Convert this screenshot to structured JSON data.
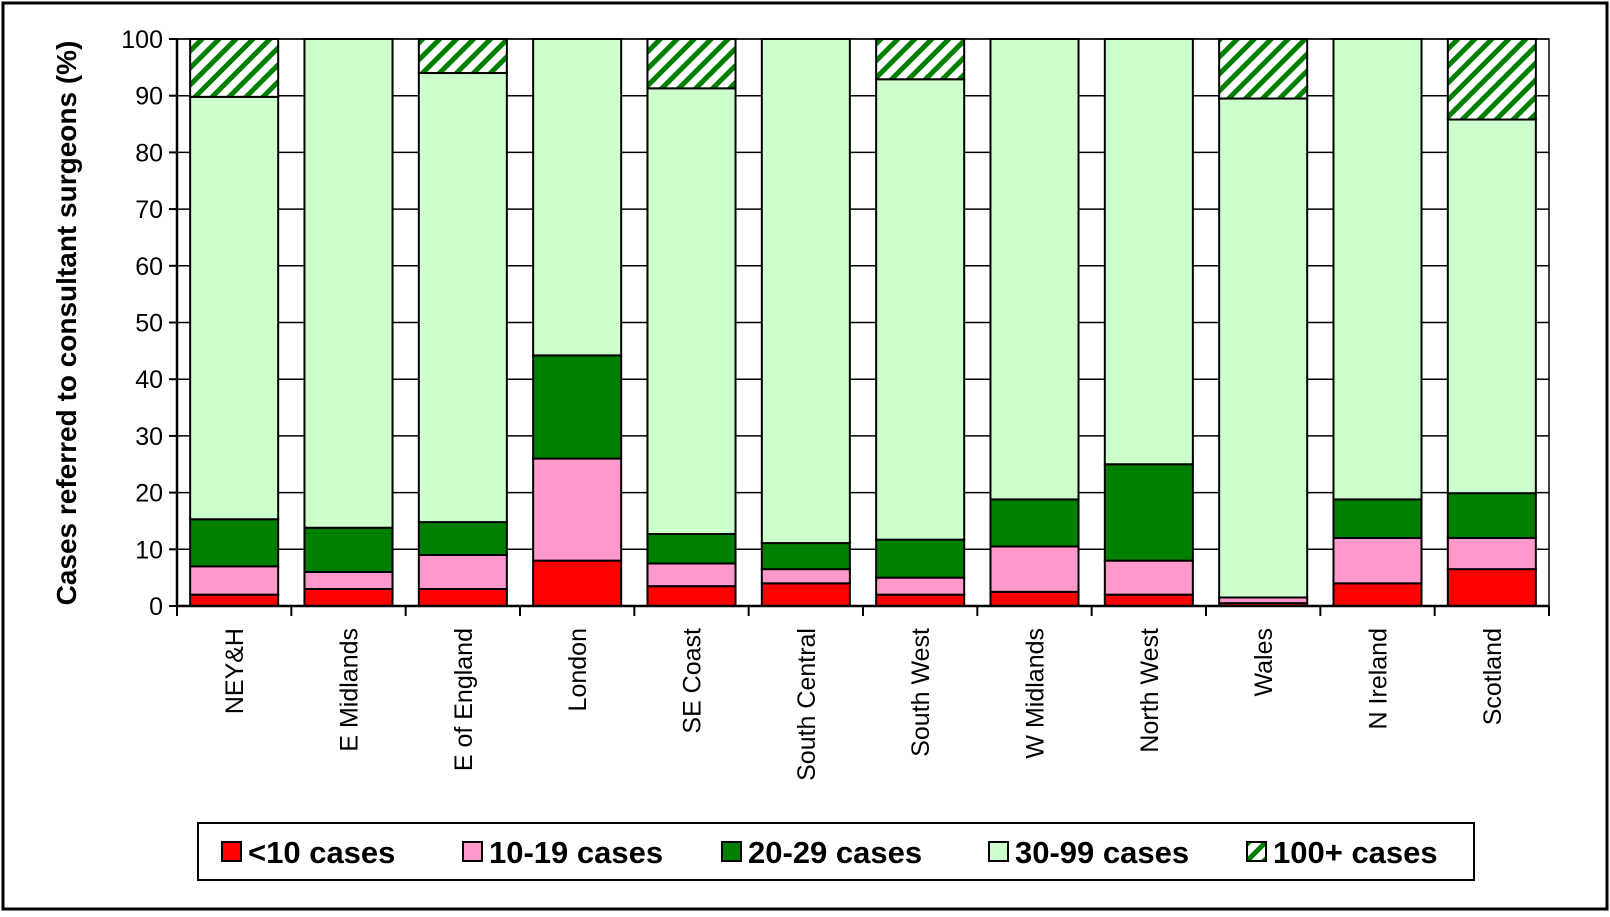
{
  "chart_data": {
    "type": "bar",
    "stacked": true,
    "title": "",
    "xlabel": "",
    "ylabel": "Cases referred to consultant surgeons (%)",
    "ylim": [
      0,
      100
    ],
    "yticks": [
      0,
      10,
      20,
      30,
      40,
      50,
      60,
      70,
      80,
      90,
      100
    ],
    "grid": true,
    "legend_position": "bottom",
    "categories": [
      "NEY&H",
      "E Midlands",
      "E of England",
      "London",
      "SE Coast",
      "South Central",
      "South West",
      "W Midlands",
      "North West",
      "Wales",
      "N Ireland",
      "Scotland"
    ],
    "series": [
      {
        "name": "<10 cases",
        "color": "#ff0000",
        "pattern": "solid",
        "values": [
          2,
          3,
          3,
          8,
          3.5,
          4,
          2,
          2.5,
          2,
          0.5,
          4,
          6.5
        ]
      },
      {
        "name": "10-19 cases",
        "color": "#ff99cc",
        "pattern": "solid",
        "values": [
          5,
          3,
          6,
          18,
          4,
          2.5,
          3,
          8,
          6,
          1,
          8,
          5.5
        ]
      },
      {
        "name": "20-29 cases",
        "color": "#008000",
        "pattern": "solid",
        "values": [
          8.3,
          7.8,
          5.8,
          18.2,
          5.2,
          4.6,
          6.7,
          8.3,
          17,
          0,
          6.8,
          7.9
        ]
      },
      {
        "name": "30-99 cases",
        "color": "#ccffcc",
        "pattern": "solid",
        "values": [
          74.5,
          86.2,
          79.2,
          55.8,
          78.6,
          88.9,
          81.2,
          81.2,
          75,
          88,
          81.2,
          65.9
        ]
      },
      {
        "name": "100+ cases",
        "color": "#008000",
        "pattern": "diagonal-hatch",
        "values": [
          10.2,
          0,
          6,
          0,
          8.7,
          0,
          7.1,
          0,
          0,
          10.5,
          0,
          14.2
        ]
      }
    ]
  }
}
